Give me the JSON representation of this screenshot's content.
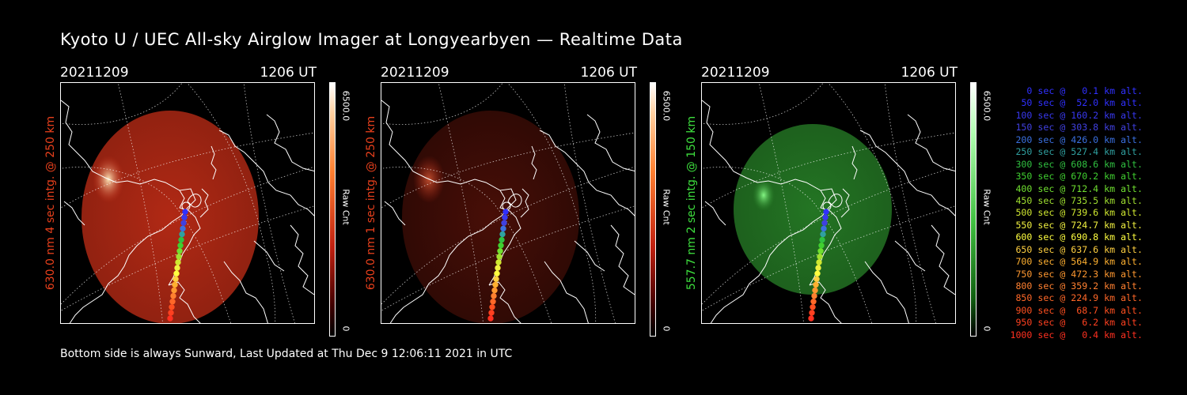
{
  "title": "Kyoto U / UEC All-sky Airglow Imager at Longyearbyen — Realtime Data",
  "footer": "Bottom side is always Sunward, Last Updated at Thu Dec  9 12:06:11 2021 in UTC",
  "panels": [
    {
      "date": "20211209",
      "time": "1206 UT",
      "label": "630.0 nm 4 sec intg. @ 250 km",
      "label_color": "#e8401c",
      "cbar_max": "6500.0",
      "cbar_min": "0",
      "cbar_unit": "Raw Cnt",
      "colormap": "red",
      "glow_color": "#d03018"
    },
    {
      "date": "20211209",
      "time": "1206 UT",
      "label": "630.0 nm 1 sec intg. @ 250 km",
      "label_color": "#e8401c",
      "cbar_max": "6500.0",
      "cbar_min": "0",
      "cbar_unit": "Raw Cnt",
      "colormap": "red",
      "glow_color": "#a02010"
    },
    {
      "date": "20211209",
      "time": "1206 UT",
      "label": "557.7 nm 2 sec intg. @ 150 km",
      "label_color": "#3ee03e",
      "cbar_max": "6500.0",
      "cbar_min": "0",
      "cbar_unit": "Raw Cnt",
      "colormap": "green",
      "glow_color": "#2a8a2a"
    }
  ],
  "legend": [
    {
      "text": "0 sec @   0.1 km alt.",
      "color": "#3030ff"
    },
    {
      "text": "50 sec @  52.0 km alt.",
      "color": "#3030ff"
    },
    {
      "text": "100 sec @ 160.2 km alt.",
      "color": "#3838f0"
    },
    {
      "text": "150 sec @ 303.8 km alt.",
      "color": "#4040e0"
    },
    {
      "text": "200 sec @ 426.0 km alt.",
      "color": "#3a70e0"
    },
    {
      "text": "250 sec @ 527.4 km alt.",
      "color": "#30a0a0"
    },
    {
      "text": "300 sec @ 608.6 km alt.",
      "color": "#30c040"
    },
    {
      "text": "350 sec @ 670.2 km alt.",
      "color": "#40d030"
    },
    {
      "text": "400 sec @ 712.4 km alt.",
      "color": "#70e030"
    },
    {
      "text": "450 sec @ 735.5 km alt.",
      "color": "#a0e030"
    },
    {
      "text": "500 sec @ 739.6 km alt.",
      "color": "#d0e830"
    },
    {
      "text": "550 sec @ 724.7 km alt.",
      "color": "#f0f040"
    },
    {
      "text": "600 sec @ 690.8 km alt.",
      "color": "#ffff40"
    },
    {
      "text": "650 sec @ 637.6 km alt.",
      "color": "#ffd040"
    },
    {
      "text": "700 sec @ 564.9 km alt.",
      "color": "#ffb030"
    },
    {
      "text": "750 sec @ 472.3 km alt.",
      "color": "#ff9830"
    },
    {
      "text": "800 sec @ 359.2 km alt.",
      "color": "#ff8030"
    },
    {
      "text": "850 sec @ 224.9 km alt.",
      "color": "#ff6828"
    },
    {
      "text": "900 sec @  68.7 km alt.",
      "color": "#ff5020"
    },
    {
      "text": "950 sec @   6.2 km alt.",
      "color": "#ff4020"
    },
    {
      "text": "1000 sec @   0.4 km alt.",
      "color": "#ff3020"
    }
  ],
  "track_colors": [
    "#ffffff",
    "#3030ff",
    "#3838f0",
    "#4040e0",
    "#3a70e0",
    "#30a0a0",
    "#30c040",
    "#40d030",
    "#70e030",
    "#a0e030",
    "#d0e830",
    "#f0f040",
    "#ffff40",
    "#ffd040",
    "#ffb030",
    "#ff9830",
    "#ff8030",
    "#ff6828",
    "#ff5020",
    "#ff4020",
    "#ff3020"
  ]
}
